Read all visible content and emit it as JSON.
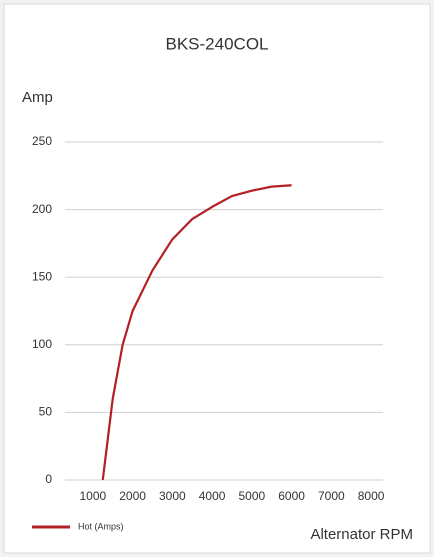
{
  "chart_data": {
    "type": "line",
    "title": "BKS-240COL",
    "y_label": "Amp",
    "x_label": "Alternator RPM",
    "x": [
      1250,
      1500,
      1750,
      2000,
      2500,
      3000,
      3500,
      4000,
      4500,
      5000,
      5500,
      6000
    ],
    "series": [
      {
        "name": "Hot (Amps)",
        "color": "#b22025",
        "values": [
          0,
          60,
          100,
          125,
          155,
          178,
          193,
          202,
          210,
          214,
          217,
          218
        ]
      }
    ],
    "xlim": [
      300,
      8300
    ],
    "xticks": [
      1000,
      2000,
      3000,
      4000,
      5000,
      6000,
      7000,
      8000
    ],
    "ylim": [
      0,
      250
    ],
    "yticks": [
      0,
      50,
      100,
      150,
      200,
      250
    ],
    "grid": true,
    "label_color": "#f07a3a"
  }
}
